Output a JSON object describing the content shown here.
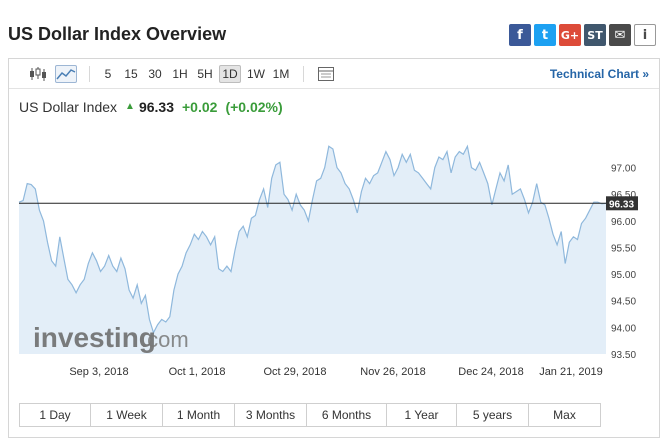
{
  "header": {
    "title": "US Dollar Index Overview"
  },
  "share": [
    {
      "icon": "facebook-icon",
      "glyph": "f",
      "color": "#3b5998"
    },
    {
      "icon": "twitter-icon",
      "glyph": "t",
      "color": "#1da1f2"
    },
    {
      "icon": "google-plus-icon",
      "glyph": "G+",
      "color": "#dd4b39"
    },
    {
      "icon": "stocktwits-icon",
      "glyph": "ST",
      "color": "#40576d"
    },
    {
      "icon": "email-icon",
      "glyph": "✉",
      "color": "#4a4a4a"
    },
    {
      "icon": "info-icon",
      "glyph": "i",
      "color": "#4a4a4a"
    }
  ],
  "toolbar": {
    "chart_types": [
      "candlestick-chart-icon",
      "area-chart-icon"
    ],
    "active_chart_type": "area-chart-icon",
    "intervals": [
      "5",
      "15",
      "30",
      "1H",
      "5H",
      "1D",
      "1W",
      "1M"
    ],
    "active_interval": "1D",
    "technical_link": "Technical Chart »"
  },
  "quote": {
    "name": "US Dollar Index",
    "last": "96.33",
    "change": "+0.02",
    "change_pct": "(+0.02%)"
  },
  "watermark": {
    "brand": "investing",
    "suffix": ".com"
  },
  "ranges": [
    "1 Day",
    "1 Week",
    "1 Month",
    "3 Months",
    "6 Months",
    "1 Year",
    "5 years",
    "Max"
  ],
  "colors": {
    "line": "#8fb8dc",
    "fill": "#e3eef8",
    "up": "#3a9c3a",
    "link": "#2565a7"
  },
  "chart_data": {
    "type": "area",
    "title": "",
    "xlabel": "",
    "ylabel": "",
    "x_ticks": [
      "Sep 3, 2018",
      "Oct 1, 2018",
      "Oct 29, 2018",
      "Nov 26, 2018",
      "Dec 24, 2018",
      "Jan 21, 2019"
    ],
    "y_ticks": [
      93.5,
      94.0,
      94.5,
      95.0,
      95.5,
      96.0,
      96.5,
      97.0
    ],
    "ylim": [
      93.5,
      97.8
    ],
    "current_price_label": "96.33",
    "current_price": 96.33,
    "grid": false,
    "values": [
      96.35,
      96.38,
      96.7,
      96.68,
      96.6,
      96.2,
      96.0,
      95.6,
      95.25,
      95.15,
      95.7,
      95.3,
      94.9,
      94.8,
      94.65,
      94.8,
      94.9,
      95.2,
      95.4,
      95.25,
      95.05,
      95.15,
      95.35,
      95.15,
      95.05,
      95.3,
      95.1,
      94.7,
      94.55,
      94.8,
      94.45,
      94.6,
      94.15,
      93.9,
      94.05,
      94.15,
      94.1,
      94.2,
      94.7,
      95.0,
      95.15,
      95.4,
      95.55,
      95.75,
      95.65,
      95.8,
      95.7,
      95.55,
      95.7,
      95.1,
      95.05,
      95.15,
      95.05,
      95.45,
      95.8,
      95.9,
      95.7,
      96.05,
      96.1,
      96.4,
      96.6,
      96.25,
      96.8,
      97.05,
      97.1,
      96.5,
      96.4,
      96.2,
      96.5,
      96.3,
      96.2,
      96.0,
      96.4,
      96.75,
      96.8,
      97.0,
      97.4,
      97.35,
      97.0,
      96.9,
      96.7,
      96.6,
      96.4,
      96.15,
      96.55,
      96.8,
      96.7,
      96.85,
      96.9,
      97.1,
      97.3,
      97.15,
      96.85,
      97.0,
      97.25,
      97.1,
      97.25,
      96.95,
      96.9,
      96.8,
      96.7,
      96.6,
      97.0,
      97.2,
      97.15,
      97.3,
      96.9,
      97.2,
      97.3,
      97.25,
      97.4,
      97.0,
      96.95,
      97.1,
      96.9,
      96.7,
      96.3,
      96.6,
      96.9,
      96.75,
      97.05,
      96.5,
      96.55,
      96.6,
      96.4,
      96.15,
      96.35,
      96.7,
      96.35,
      96.3,
      96.05,
      95.75,
      95.55,
      95.8,
      95.2,
      95.6,
      95.7,
      95.65,
      95.95,
      96.05,
      96.2,
      96.35,
      96.35,
      96.32,
      96.33
    ]
  }
}
